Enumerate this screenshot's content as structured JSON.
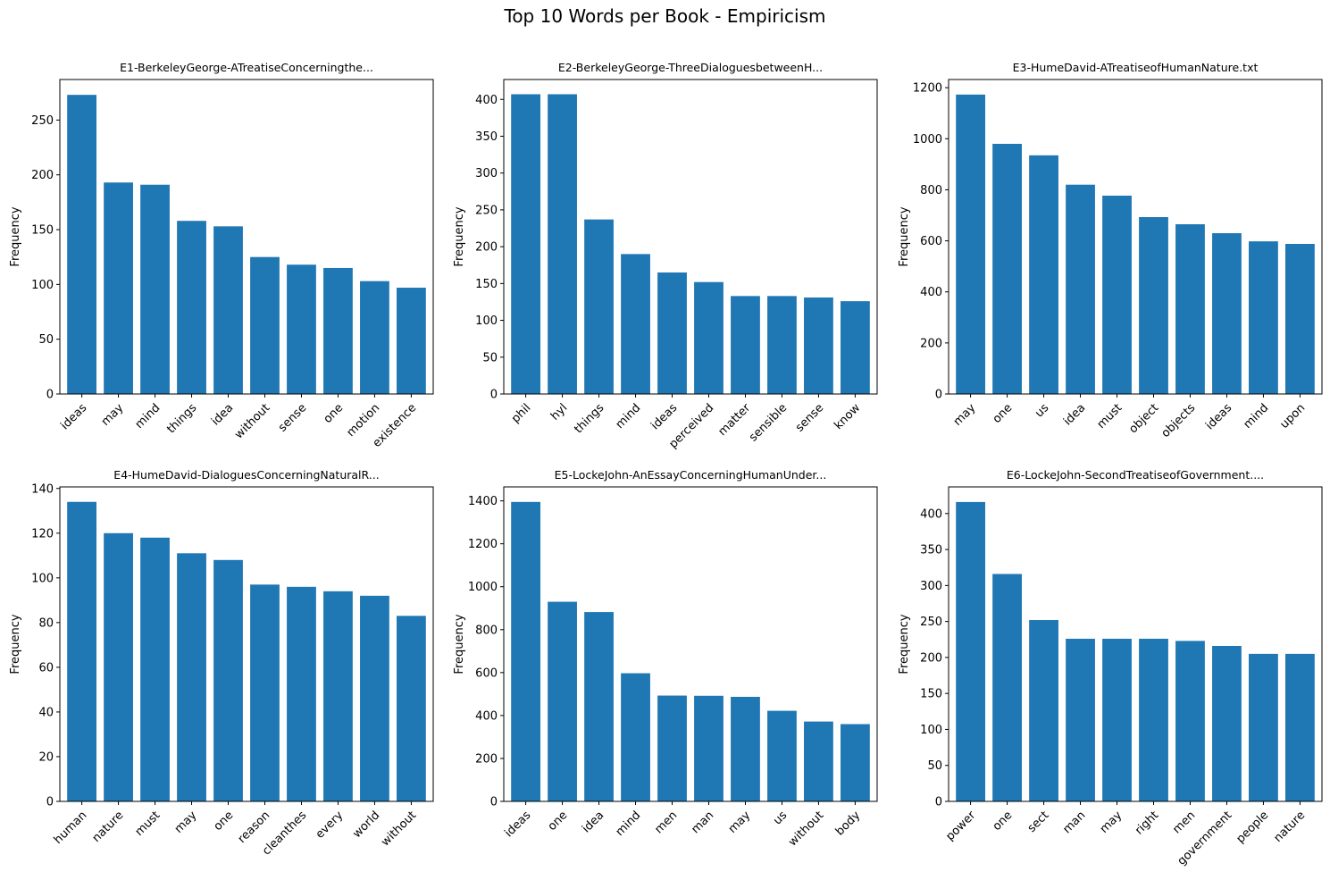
{
  "figure": {
    "suptitle": "Top 10 Words per Book - Empiricism"
  },
  "chart_data": [
    {
      "type": "bar",
      "title": "E1-BerkeleyGeorge-ATreatiseConcerningthe...",
      "xlabel": "",
      "ylabel": "Frequency",
      "categories": [
        "ideas",
        "may",
        "mind",
        "things",
        "idea",
        "without",
        "sense",
        "one",
        "motion",
        "existence"
      ],
      "values": [
        273,
        193,
        191,
        158,
        153,
        125,
        118,
        115,
        103,
        97
      ],
      "ylim": [
        0,
        287
      ],
      "yticks": [
        0,
        50,
        100,
        150,
        200,
        250
      ],
      "color": "#1f77b4"
    },
    {
      "type": "bar",
      "title": "E2-BerkeleyGeorge-ThreeDialoguesbetweenH...",
      "xlabel": "",
      "ylabel": "Frequency",
      "categories": [
        "phil",
        "hyl",
        "things",
        "mind",
        "ideas",
        "perceived",
        "matter",
        "sensible",
        "sense",
        "know"
      ],
      "values": [
        407,
        407,
        237,
        190,
        165,
        152,
        133,
        133,
        131,
        126
      ],
      "ylim": [
        0,
        427
      ],
      "yticks": [
        0,
        50,
        100,
        150,
        200,
        250,
        300,
        350,
        400
      ],
      "color": "#1f77b4"
    },
    {
      "type": "bar",
      "title": "E3-HumeDavid-ATreatiseofHumanNature.txt",
      "xlabel": "",
      "ylabel": "Frequency",
      "categories": [
        "may",
        "one",
        "us",
        "idea",
        "must",
        "object",
        "objects",
        "ideas",
        "mind",
        "upon"
      ],
      "values": [
        1173,
        980,
        935,
        820,
        777,
        693,
        665,
        630,
        598,
        588
      ],
      "ylim": [
        0,
        1232
      ],
      "yticks": [
        0,
        200,
        400,
        600,
        800,
        1000,
        1200
      ],
      "color": "#1f77b4"
    },
    {
      "type": "bar",
      "title": "E4-HumeDavid-DialoguesConcerningNaturalR...",
      "xlabel": "",
      "ylabel": "Frequency",
      "categories": [
        "human",
        "nature",
        "must",
        "may",
        "one",
        "reason",
        "cleanthes",
        "every",
        "world",
        "without"
      ],
      "values": [
        134,
        120,
        118,
        111,
        108,
        97,
        96,
        94,
        92,
        83
      ],
      "ylim": [
        0,
        140.7
      ],
      "yticks": [
        0,
        20,
        40,
        60,
        80,
        100,
        120,
        140
      ],
      "color": "#1f77b4"
    },
    {
      "type": "bar",
      "title": "E5-LockeJohn-AnEssayConcerningHumanUnder...",
      "xlabel": "",
      "ylabel": "Frequency",
      "categories": [
        "ideas",
        "one",
        "idea",
        "mind",
        "men",
        "man",
        "may",
        "us",
        "without",
        "body"
      ],
      "values": [
        1395,
        930,
        882,
        597,
        493,
        492,
        487,
        422,
        372,
        360
      ],
      "ylim": [
        0,
        1465
      ],
      "yticks": [
        0,
        200,
        400,
        600,
        800,
        1000,
        1200,
        1400
      ],
      "color": "#1f77b4"
    },
    {
      "type": "bar",
      "title": "E6-LockeJohn-SecondTreatiseofGovernment....",
      "xlabel": "",
      "ylabel": "Frequency",
      "categories": [
        "power",
        "one",
        "sect",
        "man",
        "may",
        "right",
        "men",
        "government",
        "people",
        "nature"
      ],
      "values": [
        416,
        316,
        252,
        226,
        226,
        226,
        223,
        216,
        205,
        205
      ],
      "ylim": [
        0,
        437
      ],
      "yticks": [
        0,
        50,
        100,
        150,
        200,
        250,
        300,
        350,
        400
      ],
      "color": "#1f77b4"
    }
  ]
}
